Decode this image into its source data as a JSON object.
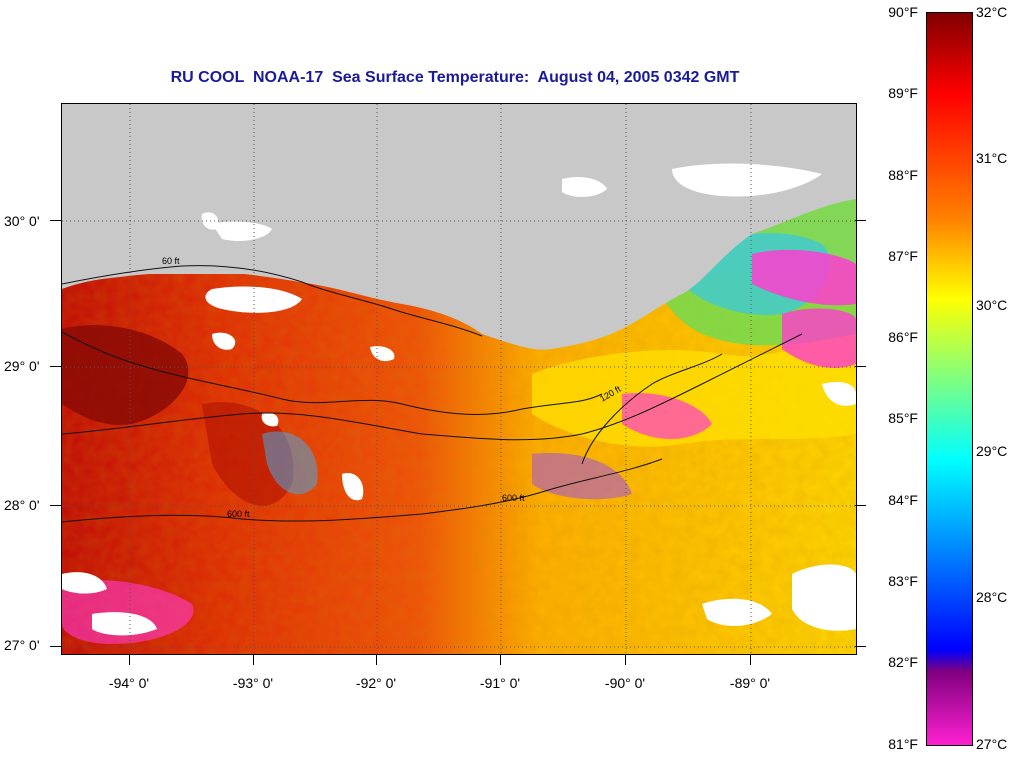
{
  "title": "RU COOL  NOAA-17  Sea Surface Temperature:  August 04, 2005 0342 GMT",
  "map": {
    "lat_labels": [
      "30° 0'",
      "29° 0'",
      "28° 0'",
      "27° 0'"
    ],
    "lat_values": [
      30,
      29,
      28,
      27
    ],
    "lon_labels": [
      "-94° 0'",
      "-93° 0'",
      "-92° 0'",
      "-91° 0'",
      "-90° 0'",
      "-89° 0'"
    ],
    "lon_values": [
      -94,
      -93,
      -92,
      -91,
      -90,
      -89
    ],
    "extent": {
      "lon_min": -94.5,
      "lon_max": -88.1,
      "lat_min": 26.95,
      "lat_max": 30.85
    },
    "contour_labels": [
      "60 ft",
      "120 ft",
      "600 ft"
    ],
    "colors": {
      "land": "#c8c8c8",
      "cloud": "#ffffff",
      "warm_max": "#8b0000",
      "hot": "#e02000",
      "warm": "#ff6a00",
      "mid": "#ffe000",
      "cool": "#70e040",
      "cold": "#00c8ff",
      "coldest": "#ff20d0"
    }
  },
  "colorbar": {
    "fahrenheit_labels": [
      "90°F",
      "89°F",
      "88°F",
      "87°F",
      "86°F",
      "85°F",
      "84°F",
      "83°F",
      "82°F",
      "81°F"
    ],
    "celsius_labels": [
      "32°C",
      "31°C",
      "30°C",
      "29°C",
      "28°C",
      "27°C"
    ],
    "range_f": [
      81,
      90
    ],
    "range_c": [
      27,
      32
    ],
    "gradient_colors": [
      "#800000",
      "#ff0000",
      "#ff8000",
      "#ffff00",
      "#00ffff",
      "#0000ff",
      "#800080",
      "#ff20d0"
    ]
  }
}
